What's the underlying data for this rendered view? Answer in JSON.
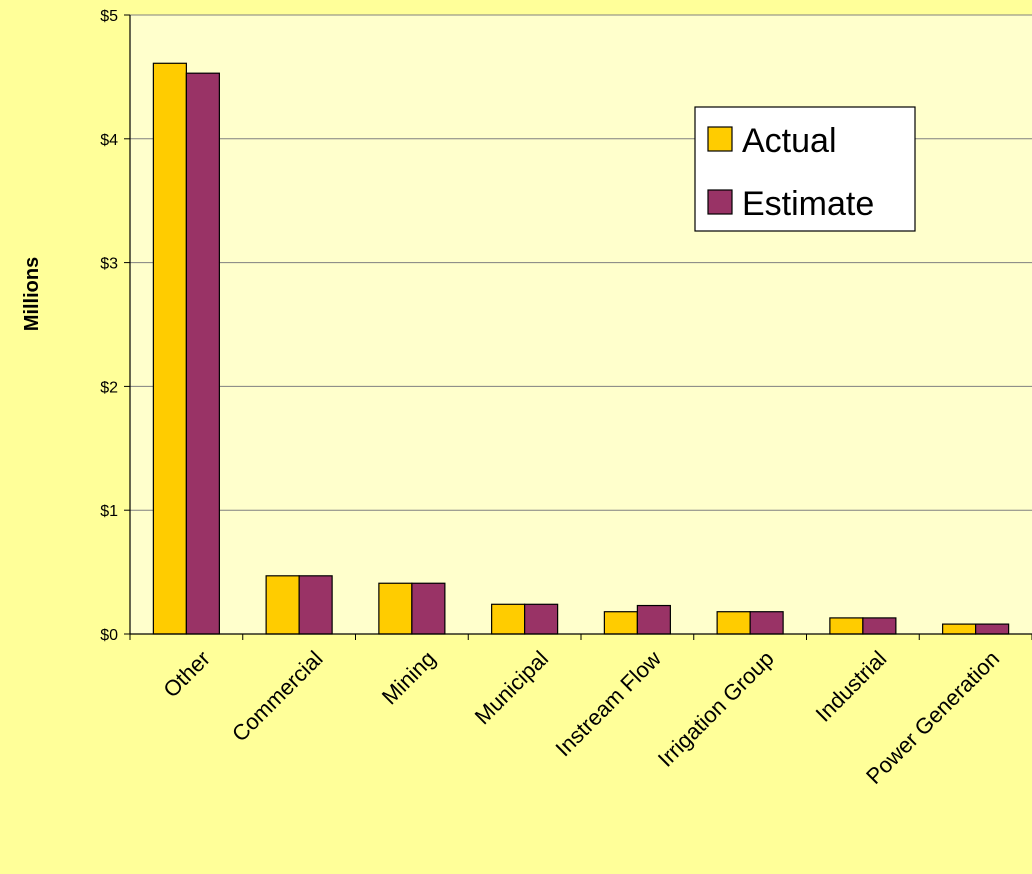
{
  "colors": {
    "page_background": "#FFFF99",
    "plot_background": "#FFFFCC",
    "gridline": "#808080",
    "axis": "#000000",
    "actual": "#FFCC00",
    "estimate": "#993366"
  },
  "chart_data": {
    "type": "bar",
    "title": "",
    "xlabel": "",
    "ylabel": "Millions",
    "categories": [
      "Other",
      "Commercial",
      "Mining",
      "Municipal",
      "Instream Flow",
      "Irrigation Group",
      "Industrial",
      "Power Generation"
    ],
    "series": [
      {
        "name": "Actual",
        "color": "#FFCC00",
        "values": [
          4.61,
          0.47,
          0.41,
          0.24,
          0.18,
          0.18,
          0.13,
          0.08
        ]
      },
      {
        "name": "Estimate",
        "color": "#993366",
        "values": [
          4.53,
          0.47,
          0.41,
          0.24,
          0.23,
          0.18,
          0.13,
          0.08
        ]
      }
    ],
    "ylim": [
      0,
      5
    ],
    "yticks": [
      0,
      1,
      2,
      3,
      4,
      5
    ],
    "ytick_labels": [
      "$0",
      "$1",
      "$2",
      "$3",
      "$4",
      "$5"
    ],
    "grid": true,
    "legend_position": "top-right"
  }
}
